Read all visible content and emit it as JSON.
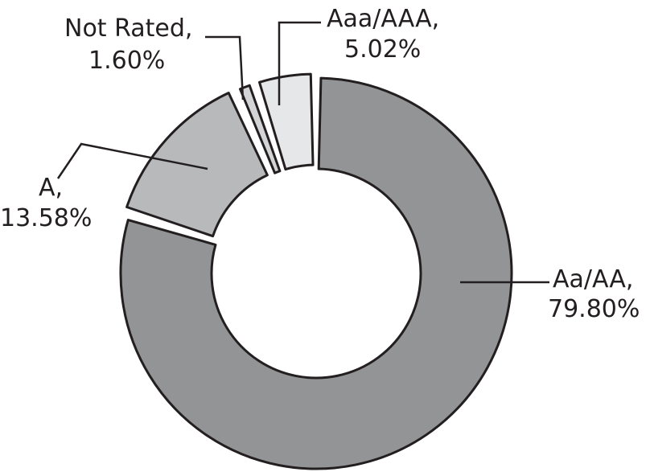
{
  "chart_data": {
    "type": "pie",
    "title": "",
    "slices": [
      {
        "name": "Aa/AA",
        "value": 79.8,
        "label_name": "Aa/AA,",
        "label_value": "79.80%",
        "color": "#939495"
      },
      {
        "name": "A",
        "value": 13.58,
        "label_name": "A,",
        "label_value": "13.58%",
        "color": "#b8b9bb"
      },
      {
        "name": "Not Rated",
        "value": 1.6,
        "label_name": "Not Rated,",
        "label_value": "1.60%",
        "color": "#d3d4d5"
      },
      {
        "name": "Aaa/AAA",
        "value": 5.02,
        "label_name": "Aaa/AAA,",
        "label_value": "5.02%",
        "color": "#e6e7e8"
      }
    ],
    "legend": "none",
    "donut": true
  }
}
